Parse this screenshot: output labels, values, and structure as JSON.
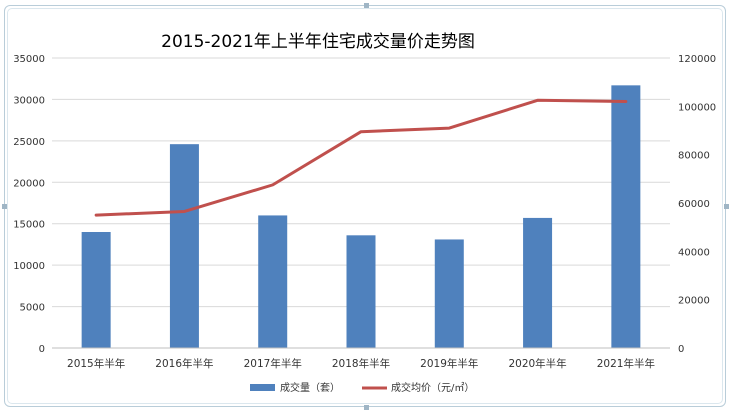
{
  "chart_data": {
    "type": "bar+line",
    "title": "2015-2021年上半年住宅成交量价走势图",
    "categories": [
      "2015年半年",
      "2016年半年",
      "2017年半年",
      "2018年半年",
      "2019年半年",
      "2020年半年",
      "2021年半年"
    ],
    "series": [
      {
        "name": "成交量（套）",
        "type": "bar",
        "axis": "left",
        "color": "#4f81bd",
        "values": [
          14000,
          24600,
          16000,
          13600,
          13100,
          15700,
          31700
        ]
      },
      {
        "name": "成交均价（元/㎡）",
        "type": "line",
        "axis": "right",
        "color": "#c0504d",
        "values": [
          55000,
          56500,
          67500,
          89500,
          91000,
          102500,
          102000
        ]
      }
    ],
    "y_left": {
      "min": 0,
      "max": 35000,
      "ticks": [
        "0",
        "5000",
        "10000",
        "15000",
        "20000",
        "25000",
        "30000",
        "35000"
      ]
    },
    "y_right": {
      "min": 0,
      "max": 120000,
      "ticks": [
        "0",
        "20000",
        "40000",
        "60000",
        "80000",
        "100000",
        "120000"
      ]
    },
    "grid": true,
    "legend_position": "bottom"
  }
}
